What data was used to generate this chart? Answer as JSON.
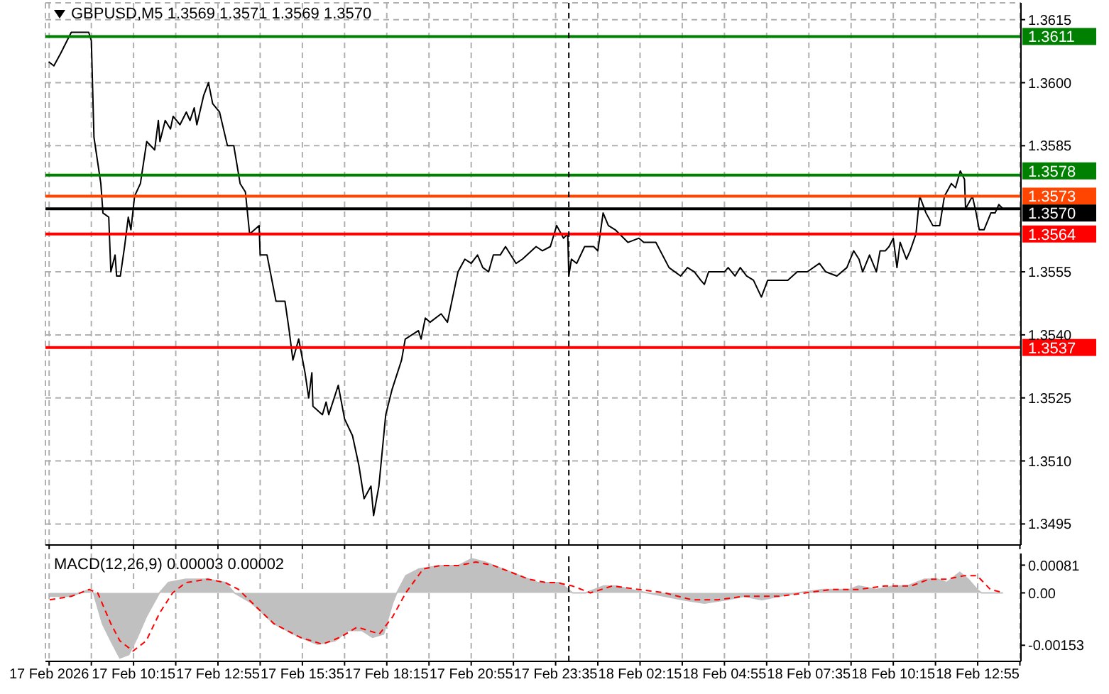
{
  "chart_data": [
    {
      "type": "line",
      "title": "GBPUSD,M5  1.3569 1.3571 1.3569 1.3570",
      "xlim": [
        "2026-02-17T07:28",
        "2026-02-18T14:17"
      ],
      "ylim": [
        1.349,
        1.3619
      ],
      "tick_labels": "y",
      "grid": true,
      "marker": "none",
      "line_style": "solid",
      "xticks": [
        {
          "value": "2026-02-17T07:35",
          "label": null
        },
        {
          "value": "2026-02-17T08:55",
          "label": null
        },
        {
          "value": "2026-02-17T10:15",
          "label": null
        },
        {
          "value": "2026-02-17T11:35",
          "label": null
        },
        {
          "value": "2026-02-17T12:55",
          "label": null
        },
        {
          "value": "2026-02-17T14:15",
          "label": null
        },
        {
          "value": "2026-02-17T15:35",
          "label": null
        },
        {
          "value": "2026-02-17T16:55",
          "label": null
        },
        {
          "value": "2026-02-17T18:15",
          "label": null
        },
        {
          "value": "2026-02-17T19:35",
          "label": null
        },
        {
          "value": "2026-02-17T20:55",
          "label": null
        },
        {
          "value": "2026-02-17T22:15",
          "label": null
        },
        {
          "value": "2026-02-17T23:35",
          "label": null
        },
        {
          "value": "2026-02-18T00:55",
          "label": null
        },
        {
          "value": "2026-02-18T02:15",
          "label": null
        },
        {
          "value": "2026-02-18T03:35",
          "label": null
        },
        {
          "value": "2026-02-18T04:55",
          "label": null
        },
        {
          "value": "2026-02-18T06:15",
          "label": null
        },
        {
          "value": "2026-02-18T07:35",
          "label": null
        },
        {
          "value": "2026-02-18T08:55",
          "label": null
        },
        {
          "value": "2026-02-18T10:15",
          "label": null
        },
        {
          "value": "2026-02-18T11:35",
          "label": null
        },
        {
          "value": "2026-02-18T12:55",
          "label": null
        },
        {
          "value": "2026-02-18T14:15",
          "label": null
        }
      ],
      "yticks": [
        1.3615,
        {
          "value": 1.36,
          "label": "1.3600"
        },
        1.3585,
        1.3555,
        {
          "value": 1.354,
          "label": "1.3540"
        },
        1.3525,
        {
          "value": 1.351,
          "label": "1.3510"
        },
        1.3495
      ],
      "ref_lines": [
        {
          "axis": "y",
          "value": 1.3611,
          "label": "1.3611",
          "color": "#008000"
        },
        {
          "axis": "y",
          "value": 1.3578,
          "label": "1.3578",
          "color": "#008000"
        },
        {
          "axis": "y",
          "value": 1.3573,
          "label": "1.3573",
          "color": "#ff4500"
        },
        {
          "axis": "y",
          "value": 1.357,
          "label": "1.3570",
          "color": "#000000"
        },
        {
          "axis": "y",
          "value": 1.3564,
          "label": "1.3564",
          "color": "#ff0000"
        },
        {
          "axis": "y",
          "value": 1.3537,
          "label": "1.3537",
          "color": "#ff0000"
        },
        {
          "axis": "x",
          "value": "2026-02-18T00:00",
          "color": "#000000",
          "line_style": "dashed"
        }
      ],
      "series": [
        {
          "color": "#000000",
          "x": [
            "2026-02-17T07:34",
            "2026-02-17T07:44",
            "2026-02-17T07:57",
            "2026-02-17T08:09",
            "2026-02-17T08:17",
            "2026-02-17T08:50",
            "2026-02-17T08:55",
            "2026-02-17T09:00",
            "2026-02-17T09:13",
            "2026-02-17T09:17",
            "2026-02-17T09:28",
            "2026-02-17T09:32",
            "2026-02-17T09:40",
            "2026-02-17T09:43",
            "2026-02-17T09:50",
            "2026-02-17T09:58",
            "2026-02-17T10:05",
            "2026-02-17T10:10",
            "2026-02-17T10:17",
            "2026-02-17T10:28",
            "2026-02-17T10:40",
            "2026-02-17T10:55",
            "2026-02-17T11:02",
            "2026-02-17T11:05",
            "2026-02-17T11:15",
            "2026-02-17T11:25",
            "2026-02-17T11:30",
            "2026-02-17T11:43",
            "2026-02-17T11:55",
            "2026-02-17T12:02",
            "2026-02-17T12:10",
            "2026-02-17T12:15",
            "2026-02-17T12:28",
            "2026-02-17T12:37",
            "2026-02-17T12:45",
            "2026-02-17T12:58",
            "2026-02-17T13:13",
            "2026-02-17T13:25",
            "2026-02-17T13:37",
            "2026-02-17T13:47",
            "2026-02-17T13:55",
            "2026-02-17T14:13",
            "2026-02-17T14:15",
            "2026-02-17T14:28",
            "2026-02-17T14:45",
            "2026-02-17T15:02",
            "2026-02-17T15:10",
            "2026-02-17T15:17",
            "2026-02-17T15:28",
            "2026-02-17T15:40",
            "2026-02-17T15:47",
            "2026-02-17T15:53",
            "2026-02-17T15:55",
            "2026-02-17T16:13",
            "2026-02-17T16:20",
            "2026-02-17T16:25",
            "2026-02-17T16:43",
            "2026-02-17T16:55",
            "2026-02-17T17:10",
            "2026-02-17T17:22",
            "2026-02-17T17:32",
            "2026-02-17T17:45",
            "2026-02-17T17:50",
            "2026-02-17T18:00",
            "2026-02-17T18:13",
            "2026-02-17T18:25",
            "2026-02-17T18:43",
            "2026-02-17T18:50",
            "2026-02-17T19:15",
            "2026-02-17T19:20",
            "2026-02-17T19:28",
            "2026-02-17T19:37",
            "2026-02-17T19:58",
            "2026-02-17T20:10",
            "2026-02-17T20:30",
            "2026-02-17T20:43",
            "2026-02-17T20:55",
            "2026-02-17T21:07",
            "2026-02-17T21:17",
            "2026-02-17T21:28",
            "2026-02-17T21:37",
            "2026-02-17T21:50",
            "2026-02-17T22:00",
            "2026-02-17T22:20",
            "2026-02-17T22:32",
            "2026-02-17T22:58",
            "2026-02-17T23:10",
            "2026-02-17T23:25",
            "2026-02-17T23:37",
            "2026-02-17T23:50",
            "2026-02-17T23:58",
            "2026-02-18T00:00",
            "2026-02-18T00:05",
            "2026-02-18T00:15",
            "2026-02-18T00:30",
            "2026-02-18T00:47",
            "2026-02-18T00:55",
            "2026-02-18T01:05",
            "2026-02-18T01:15",
            "2026-02-18T01:28",
            "2026-02-18T01:52",
            "2026-02-18T02:13",
            "2026-02-18T02:22",
            "2026-02-18T02:45",
            "2026-02-18T03:10",
            "2026-02-18T03:32",
            "2026-02-18T03:45",
            "2026-02-18T03:58",
            "2026-02-18T04:10",
            "2026-02-18T04:17",
            "2026-02-18T04:25",
            "2026-02-18T04:43",
            "2026-02-18T04:55",
            "2026-02-18T05:02",
            "2026-02-18T05:15",
            "2026-02-18T05:25",
            "2026-02-18T05:37",
            "2026-02-18T05:50",
            "2026-02-18T06:05",
            "2026-02-18T06:17",
            "2026-02-18T06:35",
            "2026-02-18T06:55",
            "2026-02-18T07:13",
            "2026-02-18T07:32",
            "2026-02-18T07:55",
            "2026-02-18T08:07",
            "2026-02-18T08:28",
            "2026-02-18T08:47",
            "2026-02-18T09:00",
            "2026-02-18T09:10",
            "2026-02-18T09:17",
            "2026-02-18T09:30",
            "2026-02-18T09:43",
            "2026-02-18T09:50",
            "2026-02-18T10:00",
            "2026-02-18T10:07",
            "2026-02-18T10:15",
            "2026-02-18T10:22",
            "2026-02-18T10:28",
            "2026-02-18T10:40",
            "2026-02-18T10:47",
            "2026-02-18T10:58",
            "2026-02-18T11:05",
            "2026-02-18T11:17",
            "2026-02-18T11:30",
            "2026-02-18T11:43",
            "2026-02-18T11:52",
            "2026-02-18T12:05",
            "2026-02-18T12:13",
            "2026-02-18T12:22",
            "2026-02-18T12:30",
            "2026-02-18T12:32",
            "2026-02-18T12:45",
            "2026-02-18T12:52",
            "2026-02-18T12:58",
            "2026-02-18T13:07",
            "2026-02-18T13:20",
            "2026-02-18T13:28",
            "2026-02-18T13:35",
            "2026-02-18T13:43"
          ],
          "values": [
            1.3605,
            1.3604,
            1.3607,
            1.361,
            1.3612,
            1.3612,
            1.361,
            1.3587,
            1.3576,
            1.3569,
            1.3568,
            1.3555,
            1.3559,
            1.3554,
            1.3554,
            1.3561,
            1.3568,
            1.3565,
            1.3573,
            1.3576,
            1.3586,
            1.3584,
            1.3591,
            1.3586,
            1.3591,
            1.3589,
            1.3592,
            1.359,
            1.3593,
            1.3591,
            1.3594,
            1.359,
            1.3597,
            1.36,
            1.3595,
            1.3593,
            1.3585,
            1.3585,
            1.3576,
            1.3574,
            1.3564,
            1.3566,
            1.3559,
            1.3559,
            1.3548,
            1.3548,
            1.3541,
            1.3534,
            1.3539,
            1.3531,
            1.3525,
            1.3531,
            1.3523,
            1.3521,
            1.3524,
            1.3521,
            1.3528,
            1.352,
            1.3516,
            1.3509,
            1.3501,
            1.3504,
            1.3497,
            1.3504,
            1.3521,
            1.3527,
            1.3534,
            1.3539,
            1.3541,
            1.3539,
            1.3544,
            1.3543,
            1.3545,
            1.3543,
            1.3555,
            1.3558,
            1.3557,
            1.3559,
            1.3556,
            1.3555,
            1.3559,
            1.3559,
            1.3561,
            1.3557,
            1.3558,
            1.3561,
            1.356,
            1.3561,
            1.3566,
            1.3563,
            1.3564,
            1.3554,
            1.3558,
            1.3557,
            1.3561,
            1.3561,
            1.356,
            1.3569,
            1.3566,
            1.3565,
            1.3562,
            1.3563,
            1.3562,
            1.3562,
            1.3556,
            1.3554,
            1.3556,
            1.3555,
            1.3553,
            1.3552,
            1.3555,
            1.3555,
            1.3555,
            1.3556,
            1.3554,
            1.3556,
            1.3554,
            1.3553,
            1.3549,
            1.3553,
            1.3553,
            1.3553,
            1.3555,
            1.3555,
            1.3557,
            1.3555,
            1.3554,
            1.3556,
            1.356,
            1.3558,
            1.3555,
            1.3559,
            1.3555,
            1.356,
            1.356,
            1.3561,
            1.3563,
            1.3556,
            1.3562,
            1.3558,
            1.356,
            1.3564,
            1.3573,
            1.3569,
            1.3566,
            1.3566,
            1.3573,
            1.3576,
            1.3575,
            1.3579,
            1.3577,
            1.357,
            1.3573,
            1.3569,
            1.3565,
            1.3565,
            1.3569,
            1.3569,
            1.3571,
            1.357
          ]
        }
      ]
    },
    {
      "type": "area",
      "title": "MACD(12,26,9) 0.00003 0.00002",
      "xlim": [
        "2026-02-17T07:28",
        "2026-02-18T14:17"
      ],
      "ylim": [
        -0.002,
        0.00115
      ],
      "grid": "x",
      "marker": "none",
      "xticks": [
        {
          "value": "2026-02-17T07:35",
          "label": "17 Feb 2026"
        },
        {
          "value": "2026-02-17T08:55",
          "label": null
        },
        {
          "value": "2026-02-17T10:15",
          "label": "17 Feb 10:15"
        },
        {
          "value": "2026-02-17T11:35",
          "label": null
        },
        {
          "value": "2026-02-17T12:55",
          "label": "17 Feb 12:55"
        },
        {
          "value": "2026-02-17T14:15",
          "label": null
        },
        {
          "value": "2026-02-17T15:35",
          "label": "17 Feb 15:35"
        },
        {
          "value": "2026-02-17T16:55",
          "label": null
        },
        {
          "value": "2026-02-17T18:15",
          "label": "17 Feb 18:15"
        },
        {
          "value": "2026-02-17T19:35",
          "label": null
        },
        {
          "value": "2026-02-17T20:55",
          "label": "17 Feb 20:55"
        },
        {
          "value": "2026-02-17T22:15",
          "label": null
        },
        {
          "value": "2026-02-17T23:35",
          "label": "17 Feb 23:35"
        },
        {
          "value": "2026-02-18T00:55",
          "label": null
        },
        {
          "value": "2026-02-18T02:15",
          "label": "18 Feb 02:15"
        },
        {
          "value": "2026-02-18T03:35",
          "label": null
        },
        {
          "value": "2026-02-18T04:55",
          "label": "18 Feb 04:55"
        },
        {
          "value": "2026-02-18T06:15",
          "label": null
        },
        {
          "value": "2026-02-18T07:35",
          "label": "18 Feb 07:35"
        },
        {
          "value": "2026-02-18T08:55",
          "label": null
        },
        {
          "value": "2026-02-18T10:15",
          "label": "18 Feb 10:15"
        },
        {
          "value": "2026-02-18T11:35",
          "label": null
        },
        {
          "value": "2026-02-18T12:55",
          "label": "18 Feb 12:55"
        },
        {
          "value": "2026-02-18T14:15",
          "label": null
        }
      ],
      "yticks": [
        0.00081,
        {
          "value": 0,
          "label": "0.00"
        },
        -0.00153
      ],
      "ref_lines": [
        {
          "axis": "x",
          "value": "2026-02-18T00:00",
          "color": "#000000",
          "line_style": "dashed"
        }
      ],
      "series": [
        {
          "color": "#c0c0c0",
          "x": [
            "2026-02-17T07:36",
            "2026-02-17T08:17",
            "2026-02-17T08:51",
            "2026-02-17T08:59",
            "2026-02-17T09:16",
            "2026-02-17T09:32",
            "2026-02-17T09:49",
            "2026-02-17T10:06",
            "2026-02-17T10:22",
            "2026-02-17T10:39",
            "2026-02-17T11:04",
            "2026-02-17T11:21",
            "2026-02-17T11:54",
            "2026-02-17T12:36",
            "2026-02-17T13:09",
            "2026-02-17T13:26",
            "2026-02-17T13:59",
            "2026-02-17T14:41",
            "2026-02-17T15:31",
            "2026-02-17T16:04",
            "2026-02-17T16:37",
            "2026-02-17T17:02",
            "2026-02-17T17:28",
            "2026-02-17T17:48",
            "2026-02-17T18:09",
            "2026-02-17T18:26",
            "2026-02-17T18:34",
            "2026-02-17T18:51",
            "2026-02-17T19:16",
            "2026-02-17T19:58",
            "2026-02-17T20:31",
            "2026-02-17T20:56",
            "2026-02-17T21:21",
            "2026-02-17T21:54",
            "2026-02-17T22:28",
            "2026-02-17T23:01",
            "2026-02-17T23:43",
            "2026-02-18T00:07",
            "2026-02-18T00:32",
            "2026-02-18T01:06",
            "2026-02-18T01:31",
            "2026-02-18T01:56",
            "2026-02-18T02:29",
            "2026-02-18T03:02",
            "2026-02-18T03:36",
            "2026-02-18T04:17",
            "2026-02-18T04:59",
            "2026-02-18T05:32",
            "2026-02-18T06:06",
            "2026-02-18T06:39",
            "2026-02-18T07:13",
            "2026-02-18T08:02",
            "2026-02-18T08:52",
            "2026-02-18T09:09",
            "2026-02-18T09:43",
            "2026-02-18T10:16",
            "2026-02-18T10:41",
            "2026-02-18T11:14",
            "2026-02-18T11:39",
            "2026-02-18T11:56",
            "2026-02-18T12:21",
            "2026-02-18T12:37",
            "2026-02-18T12:54",
            "2026-02-18T13:02",
            "2026-02-18T13:43"
          ],
          "values": [
            -0.0001,
            -0.0001,
            0.0001,
            0,
            -0.0009,
            -0.0014,
            -0.0019,
            -0.0018,
            -0.0013,
            -0.0007,
            0,
            0.0003,
            0.0004,
            0.0004,
            0.0003,
            0,
            -0.0003,
            -0.0009,
            -0.0013,
            -0.0015,
            -0.0014,
            -0.0011,
            -0.0011,
            -0.0013,
            -0.0012,
            -0.0003,
            0,
            0.0005,
            0.0007,
            0.0008,
            0.0008,
            0.001,
            0.0009,
            0.0007,
            0.0005,
            0.0003,
            0.0003,
            0,
            0,
            0.0002,
            0.0002,
            0.0001,
            0,
            -0.0001,
            -0.0002,
            -0.0003,
            -0.0002,
            -0.0001,
            -0.0002,
            -0.0001,
            0,
            0.0001,
            0.0001,
            0.0002,
            0.0001,
            0.0002,
            0.0002,
            0.0004,
            0.0004,
            0.0003,
            0.0006,
            0.0004,
            0.0001,
            0,
            0
          ]
        },
        {
          "type": "line",
          "color": "#ff0000",
          "line_style": "dashed",
          "x": [
            "2026-02-17T07:36",
            "2026-02-17T08:17",
            "2026-02-17T08:51",
            "2026-02-17T09:07",
            "2026-02-17T09:32",
            "2026-02-17T09:49",
            "2026-02-17T10:14",
            "2026-02-17T10:39",
            "2026-02-17T11:04",
            "2026-02-17T11:29",
            "2026-02-17T11:54",
            "2026-02-17T12:36",
            "2026-02-17T13:09",
            "2026-02-17T13:34",
            "2026-02-17T14:07",
            "2026-02-17T14:41",
            "2026-02-17T15:31",
            "2026-02-17T16:13",
            "2026-02-17T16:46",
            "2026-02-17T17:19",
            "2026-02-17T18:01",
            "2026-02-17T18:26",
            "2026-02-17T18:51",
            "2026-02-17T19:24",
            "2026-02-17T19:58",
            "2026-02-17T20:31",
            "2026-02-17T21:04",
            "2026-02-17T21:37",
            "2026-02-17T22:11",
            "2026-02-17T22:44",
            "2026-02-17T23:17",
            "2026-02-17T23:38",
            "2026-02-18T00:07",
            "2026-02-18T00:41",
            "2026-02-18T01:22",
            "2026-02-18T02:13",
            "2026-02-18T03:02",
            "2026-02-18T03:53",
            "2026-02-18T04:43",
            "2026-02-18T05:32",
            "2026-02-18T06:39",
            "2026-02-18T07:29",
            "2026-02-18T08:19",
            "2026-02-18T09:09",
            "2026-02-18T09:59",
            "2026-02-18T10:49",
            "2026-02-18T11:23",
            "2026-02-18T11:56",
            "2026-02-18T12:29",
            "2026-02-18T12:54",
            "2026-02-18T13:19",
            "2026-02-18T13:44"
          ],
          "values": [
            -0.0002,
            -0.0001,
            0.0001,
            0,
            -0.0009,
            -0.0014,
            -0.0017,
            -0.0014,
            -0.0006,
            0,
            0.0003,
            0.0004,
            0.0003,
            0.0001,
            -0.0004,
            -0.0009,
            -0.0013,
            -0.0015,
            -0.0013,
            -0.001,
            -0.0012,
            -0.0007,
            0,
            0.0007,
            0.0008,
            0.0008,
            0.0009,
            0.0008,
            0.0006,
            0.0004,
            0.0003,
            0.0003,
            0.0002,
            0,
            0.0002,
            0.0001,
            0,
            -0.0002,
            -0.0002,
            -0.0001,
            -0.0001,
            0,
            0.0001,
            0.0001,
            0.0002,
            0.0002,
            0.0004,
            0.0004,
            0.0005,
            0.0005,
            0.0001,
            0
          ]
        }
      ]
    }
  ]
}
